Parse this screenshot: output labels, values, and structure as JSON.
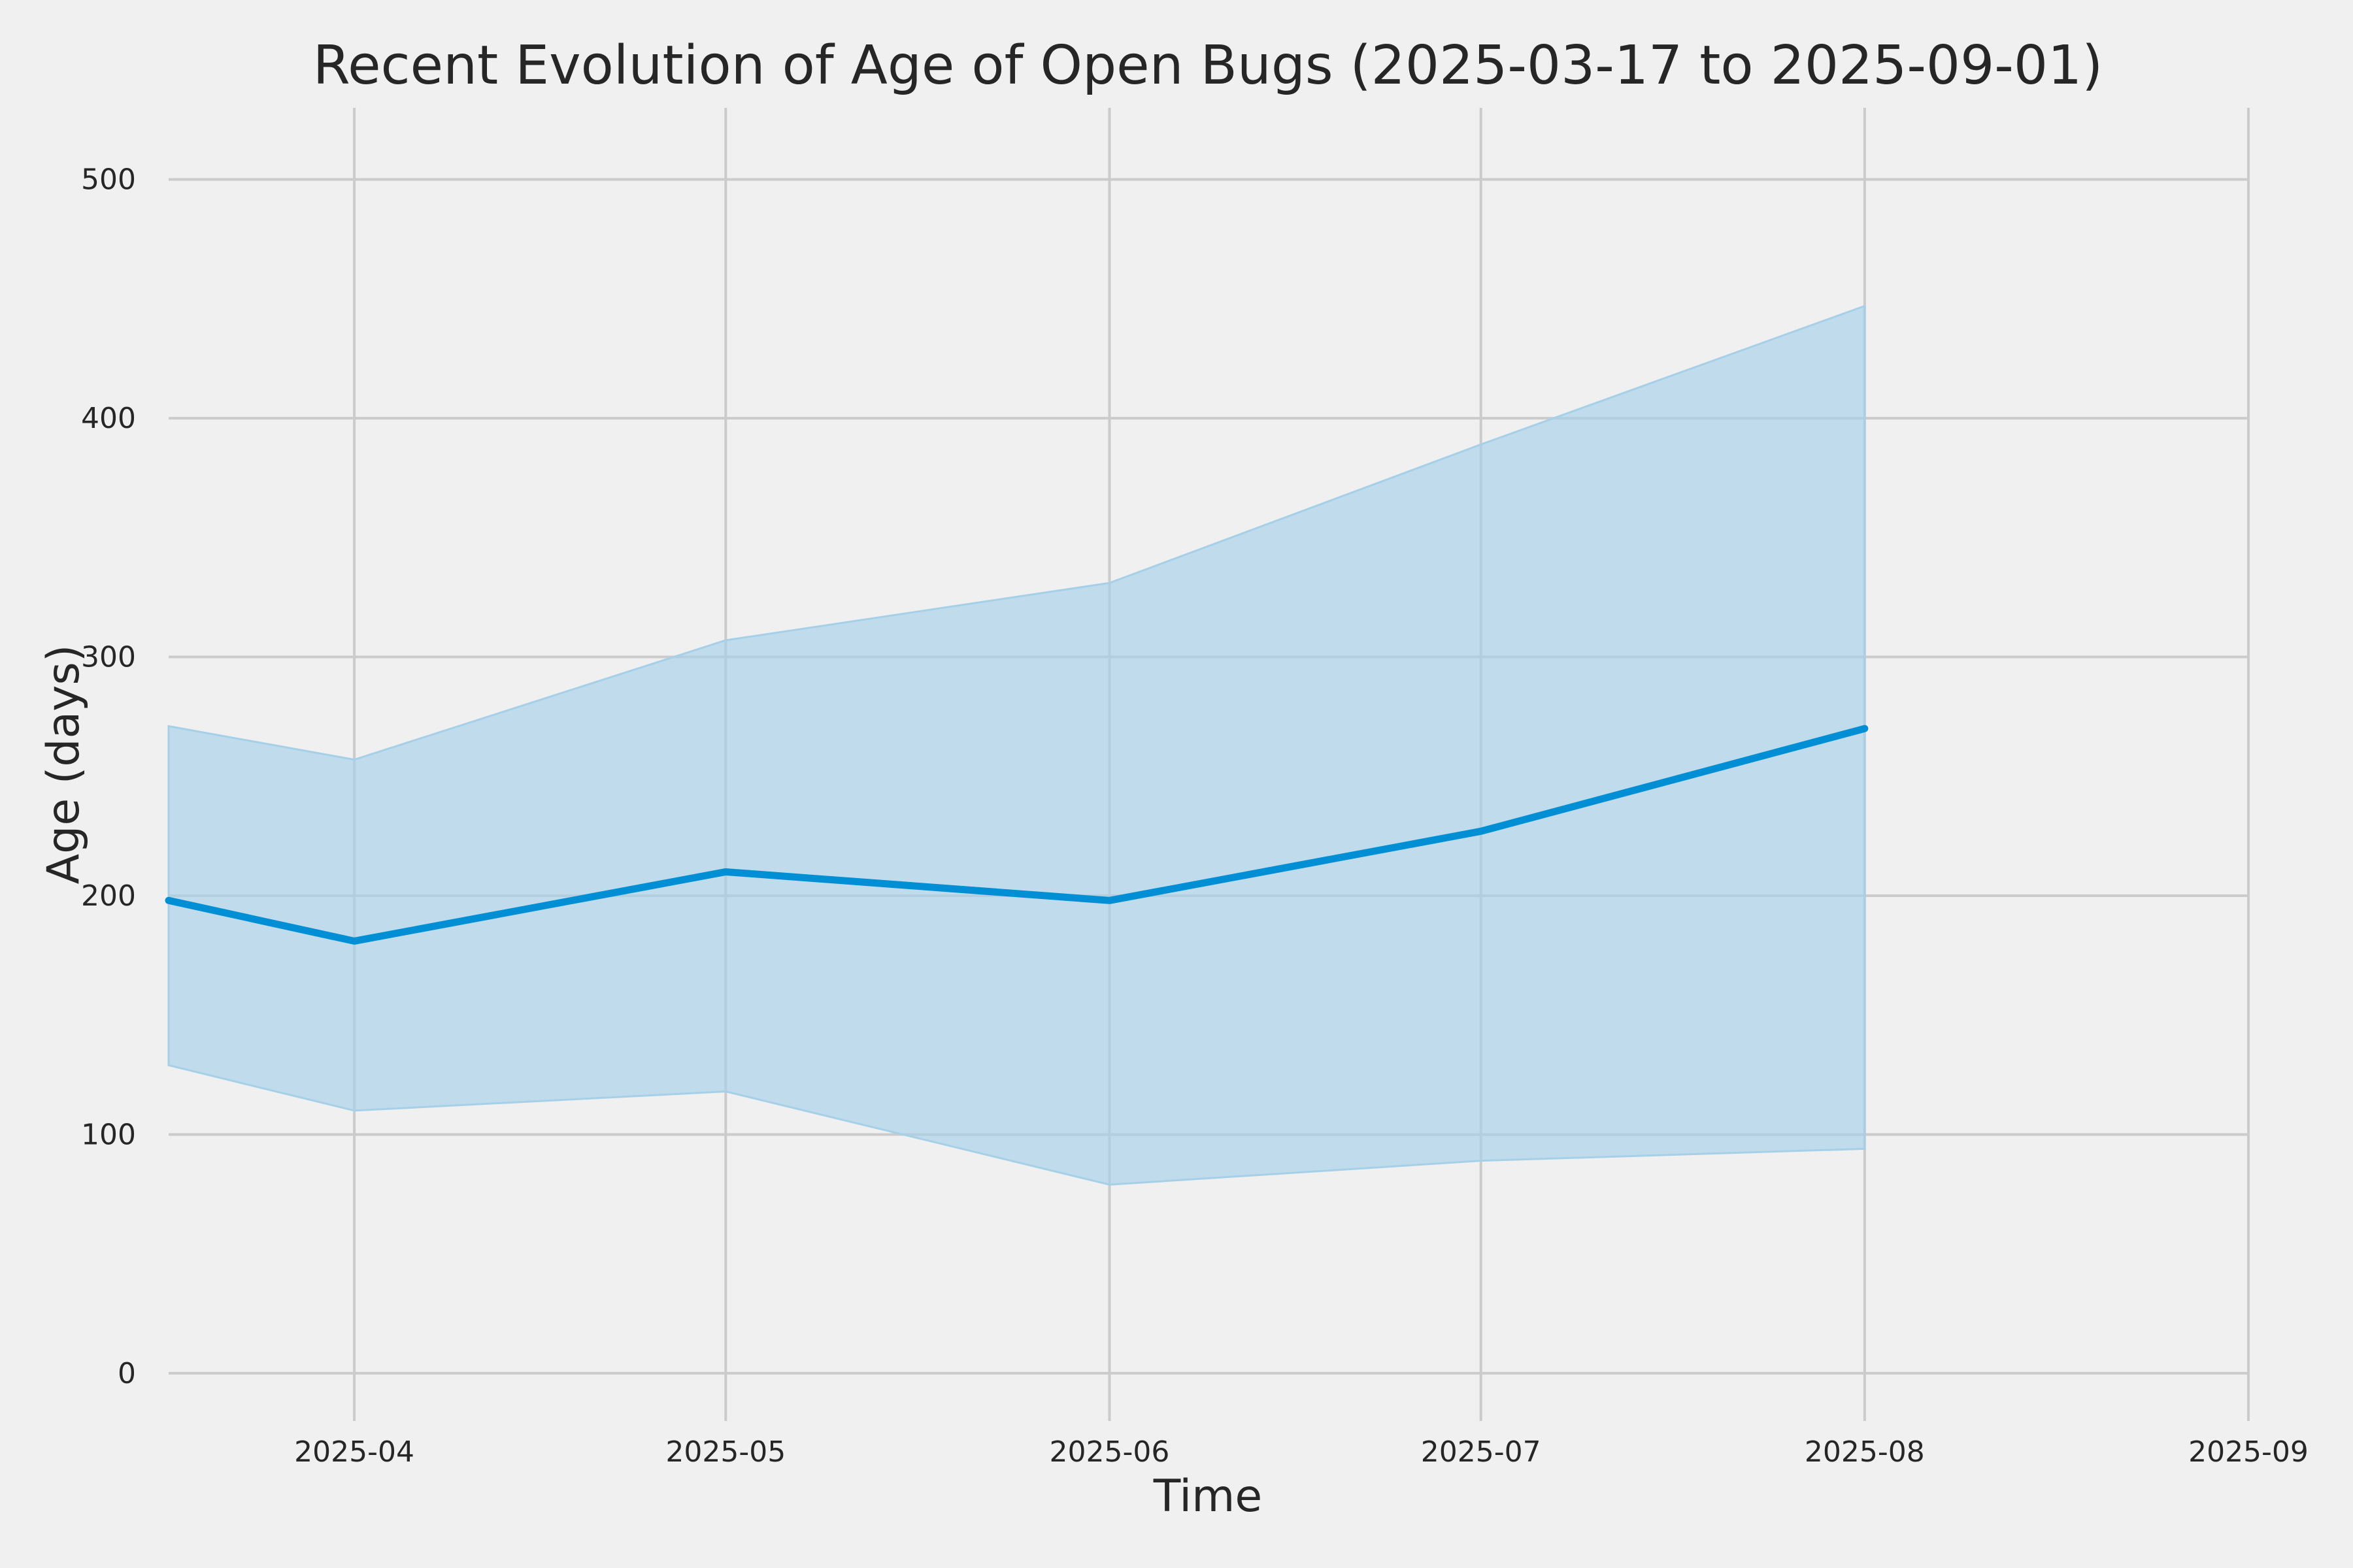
{
  "chart_data": {
    "type": "line",
    "title": "Recent Evolution of Age of Open Bugs (2025-03-17 to 2025-09-01)",
    "xlabel": "Time",
    "ylabel": "Age (days)",
    "xlim": [
      "2025-03-17",
      "2025-09-01"
    ],
    "ylim": [
      -20,
      530
    ],
    "grid": true,
    "x_ticks": [
      "2025-04",
      "2025-05",
      "2025-06",
      "2025-07",
      "2025-08",
      "2025-09"
    ],
    "y_ticks": [
      0,
      100,
      200,
      300,
      400,
      500
    ],
    "series": [
      {
        "x": [
          "2025-03-17",
          "2025-04-01",
          "2025-05-01",
          "2025-06-01",
          "2025-07-01",
          "2025-08-01"
        ],
        "values": [
          198,
          181,
          210,
          198,
          227,
          270
        ],
        "band_upper": [
          271,
          257,
          307,
          331,
          389,
          447
        ],
        "band_lower": [
          129,
          110,
          118,
          79,
          89,
          94
        ]
      }
    ],
    "colors": {
      "line": "#008fd5",
      "band": "#a6d0e8",
      "grid": "#cbcbcb",
      "background": "#f0f0f0",
      "text": "#262626"
    }
  }
}
